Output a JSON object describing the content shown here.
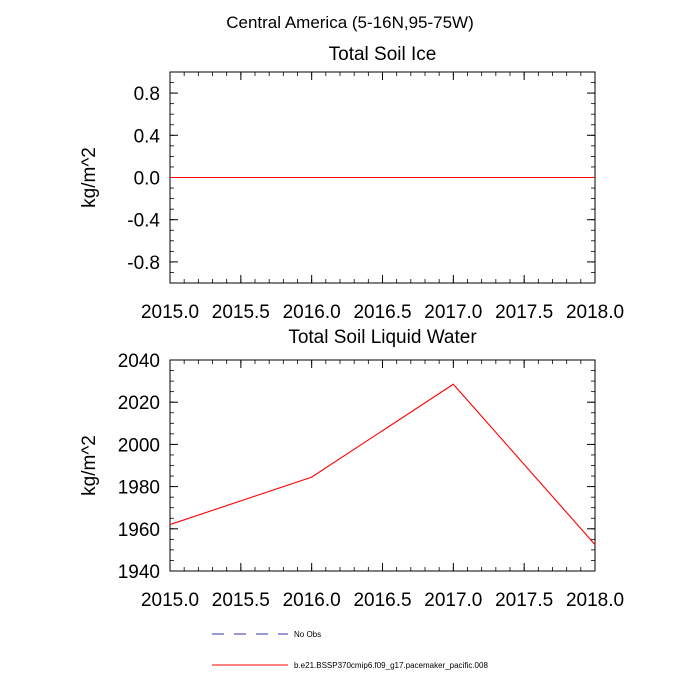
{
  "figure_title": "Central America (5-16N,95-75W)",
  "chart_data": [
    {
      "type": "line",
      "title": "Total Soil Ice",
      "xlabel": "",
      "ylabel": "kg/m^2",
      "xlim": [
        2015.0,
        2018.0
      ],
      "ylim": [
        -1.0,
        1.0
      ],
      "x_ticks": [
        2015.0,
        2015.5,
        2016.0,
        2016.5,
        2017.0,
        2017.5,
        2018.0
      ],
      "x_tick_labels": [
        "2015.0",
        "2015.5",
        "2016.0",
        "2016.5",
        "2017.0",
        "2017.5",
        "2018.0"
      ],
      "y_ticks": [
        0.8,
        0.4,
        0.0,
        -0.4,
        -0.8
      ],
      "y_tick_labels": [
        "0.8",
        "0.4",
        "0.0",
        "-0.4",
        "-0.8"
      ],
      "series": [
        {
          "name": "b.e21.BSSP370cmip6.f09_g17.pacemaker_pacific.008",
          "color": "#ff0000",
          "x": [
            2015.0,
            2016.0,
            2017.0,
            2018.0
          ],
          "values": [
            0,
            0,
            0,
            0
          ]
        }
      ]
    },
    {
      "type": "line",
      "title": "Total Soil Liquid Water",
      "xlabel": "",
      "ylabel": "kg/m^2",
      "xlim": [
        2015.0,
        2018.0
      ],
      "ylim": [
        1940,
        2040
      ],
      "x_ticks": [
        2015.0,
        2015.5,
        2016.0,
        2016.5,
        2017.0,
        2017.5,
        2018.0
      ],
      "x_tick_labels": [
        "2015.0",
        "2015.5",
        "2016.0",
        "2016.5",
        "2017.0",
        "2017.5",
        "2018.0"
      ],
      "y_ticks": [
        2040,
        2020,
        2000,
        1980,
        1960,
        1940
      ],
      "y_tick_labels": [
        "2040",
        "2020",
        "2000",
        "1980",
        "1960",
        "1940"
      ],
      "series": [
        {
          "name": "b.e21.BSSP370cmip6.f09_g17.pacemaker_pacific.008",
          "color": "#ff0000",
          "x": [
            2015.0,
            2016.0,
            2017.0,
            2018.0
          ],
          "values": [
            1962,
            1984.5,
            2028.5,
            1952.5
          ]
        }
      ]
    }
  ],
  "legend": [
    {
      "label": "No Obs",
      "color": "#3333aa",
      "style": "dashed"
    },
    {
      "label": "b.e21.BSSP370cmip6.f09_g17.pacemaker_pacific.008",
      "color": "#ff0000",
      "style": "solid"
    }
  ]
}
